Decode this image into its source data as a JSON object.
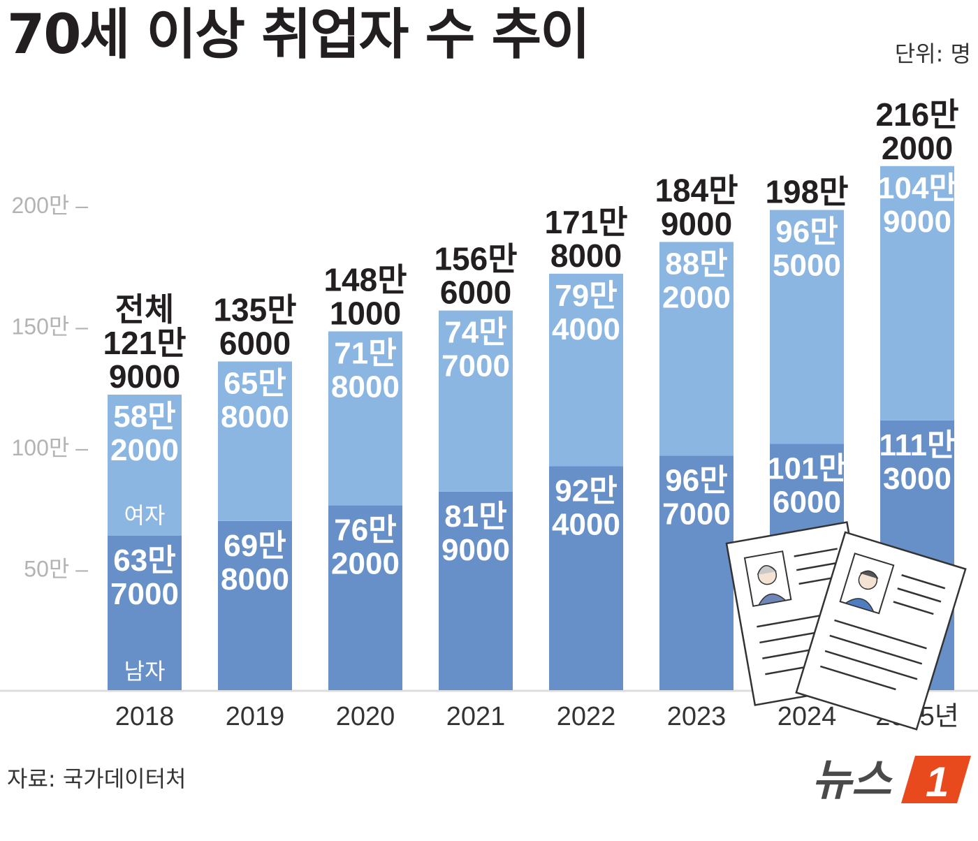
{
  "header": {
    "title": "70세 이상 취업자 수 추이",
    "unit": "단위: 명"
  },
  "footer": {
    "source": "자료: 국가데이터처",
    "logo_text": "뉴스1"
  },
  "colors": {
    "male": "#6890c8",
    "female": "#8ab6e1",
    "text": "#231f20",
    "tick": "#b3b3b3",
    "baseline": "#dddddd",
    "logo_orange": "#e8491d",
    "logo_text": "#4a4a4a"
  },
  "chart_data": {
    "type": "bar",
    "stacked": true,
    "categories": [
      "2018",
      "2019",
      "2020",
      "2021",
      "2022",
      "2023",
      "2024",
      "2025년"
    ],
    "series": [
      {
        "name": "남자",
        "values": [
          637000,
          698000,
          762000,
          819000,
          924000,
          967000,
          1016000,
          1113000
        ],
        "labels": [
          [
            "63만",
            "7000"
          ],
          [
            "69만",
            "8000"
          ],
          [
            "76만",
            "2000"
          ],
          [
            "81만",
            "9000"
          ],
          [
            "92만",
            "4000"
          ],
          [
            "96만",
            "7000"
          ],
          [
            "101만",
            "6000"
          ],
          [
            "111만",
            "3000"
          ]
        ]
      },
      {
        "name": "여자",
        "values": [
          582000,
          658000,
          718000,
          747000,
          794000,
          882000,
          965000,
          1049000
        ],
        "labels": [
          [
            "58만",
            "2000"
          ],
          [
            "65만",
            "8000"
          ],
          [
            "71만",
            "8000"
          ],
          [
            "74만",
            "7000"
          ],
          [
            "79만",
            "4000"
          ],
          [
            "88만",
            "2000"
          ],
          [
            "96만",
            "5000"
          ],
          [
            "104만",
            "9000"
          ]
        ]
      }
    ],
    "totals": [
      1219000,
      1356000,
      1481000,
      1566000,
      1718000,
      1849000,
      1981000,
      2162000
    ],
    "total_labels": [
      [
        "전체",
        "121만",
        "9000"
      ],
      [
        "135만",
        "6000"
      ],
      [
        "148만",
        "1000"
      ],
      [
        "156만",
        "6000"
      ],
      [
        "171만",
        "8000"
      ],
      [
        "184만",
        "9000"
      ],
      [
        "198만"
      ],
      [
        "216만",
        "2000"
      ]
    ],
    "yticks": [
      {
        "value": 500000,
        "label": "50만 –"
      },
      {
        "value": 1000000,
        "label": "100만 –"
      },
      {
        "value": 1500000,
        "label": "150만 –"
      },
      {
        "value": 2000000,
        "label": "200만 –"
      }
    ],
    "ylim": [
      0,
      2000000
    ],
    "grid": false,
    "legend": "inside first bar"
  }
}
